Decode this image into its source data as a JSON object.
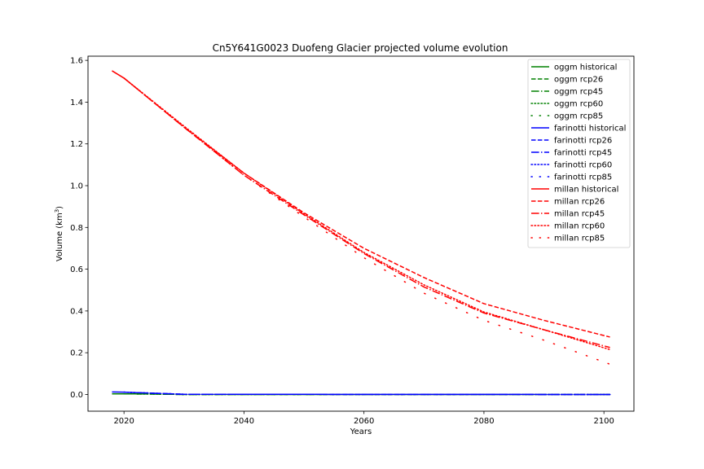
{
  "chart_data": {
    "type": "line",
    "title": "Cn5Y641G0023 Duofeng Glacier projected volume evolution",
    "xlabel": "Years",
    "ylabel": "Volume (km³)",
    "ylabel_main": "Volume (km",
    "ylabel_sup": "3",
    "ylabel_close": ")",
    "xlim": [
      2014,
      2105
    ],
    "ylim": [
      -0.08,
      1.62
    ],
    "xticks": [
      2020,
      2040,
      2060,
      2080,
      2100
    ],
    "xtick_labels": [
      "2020",
      "2040",
      "2060",
      "2080",
      "2100"
    ],
    "yticks": [
      0.0,
      0.2,
      0.4,
      0.6,
      0.8,
      1.0,
      1.2,
      1.4,
      1.6
    ],
    "ytick_labels": [
      "0.0",
      "0.2",
      "0.4",
      "0.6",
      "0.8",
      "1.0",
      "1.2",
      "1.4",
      "1.6"
    ],
    "grid": false,
    "legend_position": "top-right",
    "series": [
      {
        "name": "oggm historical",
        "color": "#008000",
        "style": "solid",
        "points": [
          [
            2018,
            0.003
          ],
          [
            2020,
            0.003
          ]
        ]
      },
      {
        "name": "oggm rcp26",
        "color": "#008000",
        "style": "dashed",
        "points": [
          [
            2020,
            0.003
          ],
          [
            2025,
            0.002
          ],
          [
            2030,
            0.0
          ],
          [
            2101,
            0.0
          ]
        ]
      },
      {
        "name": "oggm rcp45",
        "color": "#008000",
        "style": "dashdot",
        "points": [
          [
            2020,
            0.003
          ],
          [
            2025,
            0.002
          ],
          [
            2030,
            0.0
          ],
          [
            2101,
            0.0
          ]
        ]
      },
      {
        "name": "oggm rcp60",
        "color": "#008000",
        "style": "dotted",
        "points": [
          [
            2020,
            0.003
          ],
          [
            2025,
            0.002
          ],
          [
            2030,
            0.0
          ],
          [
            2101,
            0.0
          ]
        ]
      },
      {
        "name": "oggm rcp85",
        "color": "#008000",
        "style": "sparse",
        "points": [
          [
            2020,
            0.003
          ],
          [
            2025,
            0.002
          ],
          [
            2030,
            0.0
          ],
          [
            2101,
            0.0
          ]
        ]
      },
      {
        "name": "farinotti historical",
        "color": "#0000ff",
        "style": "solid",
        "points": [
          [
            2018,
            0.012
          ],
          [
            2020,
            0.011
          ]
        ]
      },
      {
        "name": "farinotti rcp26",
        "color": "#0000ff",
        "style": "dashed",
        "points": [
          [
            2020,
            0.011
          ],
          [
            2025,
            0.006
          ],
          [
            2030,
            0.001
          ],
          [
            2101,
            0.0
          ]
        ]
      },
      {
        "name": "farinotti rcp45",
        "color": "#0000ff",
        "style": "dashdot",
        "points": [
          [
            2020,
            0.011
          ],
          [
            2025,
            0.006
          ],
          [
            2030,
            0.001
          ],
          [
            2101,
            0.0
          ]
        ]
      },
      {
        "name": "farinotti rcp60",
        "color": "#0000ff",
        "style": "dotted",
        "points": [
          [
            2020,
            0.011
          ],
          [
            2025,
            0.006
          ],
          [
            2030,
            0.001
          ],
          [
            2101,
            0.0
          ]
        ]
      },
      {
        "name": "farinotti rcp85",
        "color": "#0000ff",
        "style": "sparse",
        "points": [
          [
            2020,
            0.011
          ],
          [
            2025,
            0.006
          ],
          [
            2030,
            0.001
          ],
          [
            2101,
            0.0
          ]
        ]
      },
      {
        "name": "millan historical",
        "color": "#ff0000",
        "style": "solid",
        "points": [
          [
            2018,
            1.55
          ],
          [
            2020,
            1.515
          ]
        ]
      },
      {
        "name": "millan rcp26",
        "color": "#ff0000",
        "style": "dashed",
        "points": [
          [
            2020,
            1.515
          ],
          [
            2030,
            1.28
          ],
          [
            2040,
            1.06
          ],
          [
            2050,
            0.87
          ],
          [
            2060,
            0.7
          ],
          [
            2070,
            0.56
          ],
          [
            2080,
            0.435
          ],
          [
            2090,
            0.355
          ],
          [
            2101,
            0.275
          ]
        ]
      },
      {
        "name": "millan rcp45",
        "color": "#ff0000",
        "style": "dashdot",
        "points": [
          [
            2020,
            1.515
          ],
          [
            2030,
            1.28
          ],
          [
            2040,
            1.05
          ],
          [
            2050,
            0.86
          ],
          [
            2060,
            0.675
          ],
          [
            2070,
            0.515
          ],
          [
            2080,
            0.39
          ],
          [
            2090,
            0.31
          ],
          [
            2101,
            0.225
          ]
        ]
      },
      {
        "name": "millan rcp60",
        "color": "#ff0000",
        "style": "dotted",
        "points": [
          [
            2020,
            1.515
          ],
          [
            2030,
            1.285
          ],
          [
            2040,
            1.06
          ],
          [
            2050,
            0.865
          ],
          [
            2060,
            0.68
          ],
          [
            2070,
            0.525
          ],
          [
            2080,
            0.395
          ],
          [
            2090,
            0.31
          ],
          [
            2101,
            0.215
          ]
        ]
      },
      {
        "name": "millan rcp85",
        "color": "#ff0000",
        "style": "sparse",
        "points": [
          [
            2020,
            1.515
          ],
          [
            2030,
            1.28
          ],
          [
            2040,
            1.05
          ],
          [
            2050,
            0.85
          ],
          [
            2060,
            0.655
          ],
          [
            2070,
            0.485
          ],
          [
            2080,
            0.355
          ],
          [
            2090,
            0.26
          ],
          [
            2101,
            0.145
          ]
        ]
      }
    ]
  }
}
